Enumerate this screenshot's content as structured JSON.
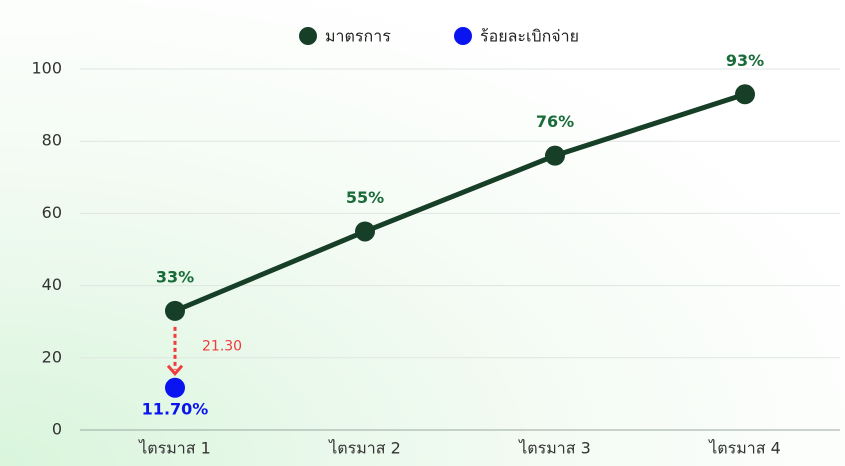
{
  "chart_data": {
    "type": "line",
    "categories": [
      "ไตรมาส 1",
      "ไตรมาส 2",
      "ไตรมาส 3",
      "ไตรมาส 4"
    ],
    "series": [
      {
        "name": "มาตรการ",
        "type": "line",
        "color": "#173f27",
        "label_color": "#1a6b3a",
        "values": [
          33,
          55,
          76,
          93
        ],
        "value_labels": [
          "33%",
          "55%",
          "76%",
          "93%"
        ]
      },
      {
        "name": "ร้อยละเบิกจ่าย",
        "type": "scatter",
        "color": "#0a14f0",
        "label_color": "#0a14f0",
        "values": [
          11.7,
          null,
          null,
          null
        ],
        "value_labels": [
          "11.70%",
          null,
          null,
          null
        ]
      }
    ],
    "annotation": {
      "value": 21.3,
      "label": "21.30",
      "color": "#f03c3c"
    },
    "ylim": [
      0,
      100
    ],
    "yticks": [
      0,
      20,
      40,
      60,
      80,
      100
    ],
    "grid": true,
    "legend": "top"
  }
}
